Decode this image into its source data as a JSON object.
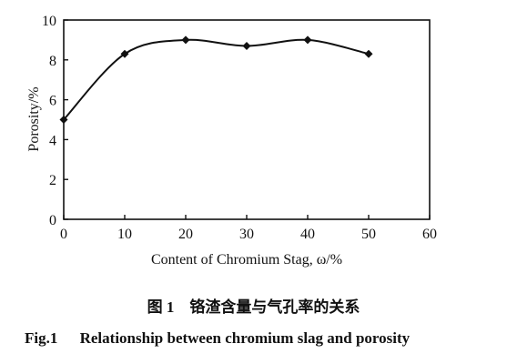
{
  "chart_data": {
    "type": "line",
    "x": [
      0,
      10,
      20,
      30,
      40,
      50
    ],
    "series": [
      {
        "values": [
          5.0,
          8.3,
          9.0,
          8.7,
          9.0,
          8.3
        ],
        "color": "#111111",
        "marker": "diamond"
      }
    ],
    "xlabel": "Content of Chromium Stag, ω/%",
    "ylabel": "Porosity/%",
    "xlim": [
      0,
      60
    ],
    "ylim": [
      0,
      10
    ],
    "xticks": [
      "0",
      "10",
      "20",
      "30",
      "40",
      "50",
      "60"
    ],
    "yticks": [
      "0",
      "2",
      "4",
      "6",
      "8",
      "10"
    ],
    "grid": false,
    "smooth": true
  },
  "caption": {
    "cn": "图 1　铬渣含量与气孔率的关系",
    "en_fig": "Fig.1",
    "en_text": "Relationship between chromium slag and porosity"
  }
}
